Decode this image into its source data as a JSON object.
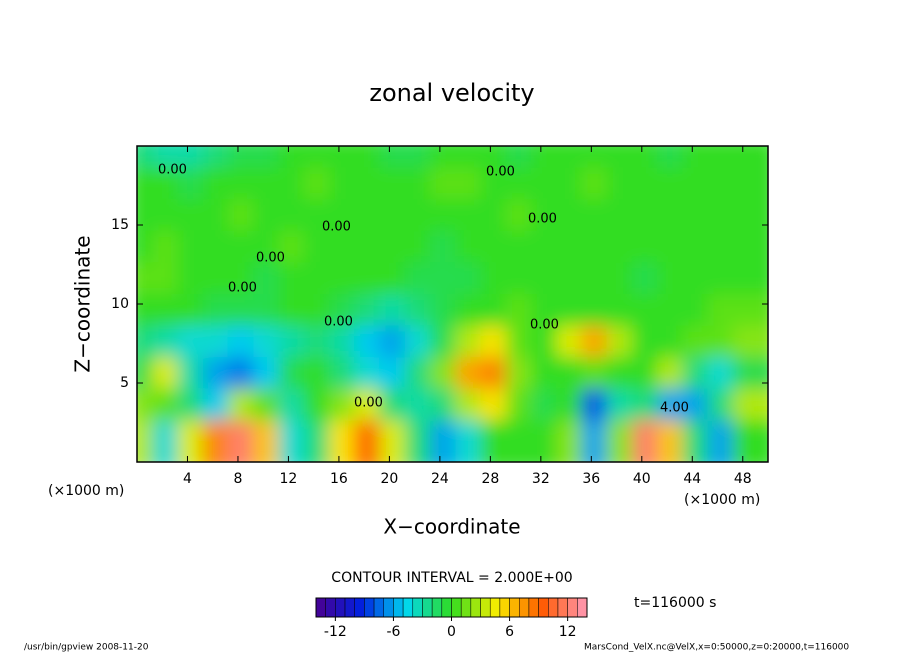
{
  "chart_data": {
    "type": "contour",
    "title": "zonal velocity",
    "x_label": "X−coordinate",
    "y_label": "Z−coordinate",
    "x_unit": "(×1000 m)",
    "xlim": [
      0,
      50
    ],
    "ylim": [
      0,
      20
    ],
    "xticks": [
      4,
      8,
      12,
      16,
      20,
      24,
      28,
      32,
      36,
      40,
      44,
      48
    ],
    "yticks": [
      5,
      10,
      15
    ],
    "x": [
      1,
      3,
      5,
      7,
      9,
      11,
      13,
      15,
      17,
      19,
      21,
      23,
      25,
      27,
      29,
      31,
      33,
      35,
      37,
      39,
      41,
      43,
      45,
      47,
      49
    ],
    "y": [
      19,
      17,
      15,
      13,
      11,
      9,
      7,
      5,
      3,
      1
    ],
    "z": [
      [
        -2,
        -3,
        -3,
        -2,
        -1,
        -1,
        0,
        0,
        0,
        0,
        -1,
        -1,
        0,
        0,
        0,
        -1,
        0,
        0,
        0,
        0,
        0,
        -1,
        0,
        0,
        0
      ],
      [
        0,
        0,
        -1,
        0,
        0,
        0,
        0,
        1,
        0,
        0,
        0,
        0,
        1,
        1,
        0,
        0,
        0,
        0,
        1,
        0,
        0,
        0,
        0,
        0,
        0
      ],
      [
        0,
        0,
        0,
        0,
        1,
        0,
        0,
        0,
        0,
        0,
        0,
        0,
        0,
        0,
        0,
        1,
        0,
        0,
        0,
        0,
        0,
        0,
        0,
        0,
        0
      ],
      [
        0,
        1,
        0,
        0,
        0,
        0,
        1,
        0,
        0,
        0,
        0,
        0,
        -1,
        0,
        0,
        0,
        0,
        0,
        0,
        0,
        0,
        0,
        0,
        0,
        0
      ],
      [
        1,
        1,
        0,
        0,
        0,
        -1,
        0,
        0,
        0,
        0,
        0,
        -1,
        -1,
        -1,
        0,
        0,
        0,
        0,
        0,
        0,
        -1,
        0,
        0,
        0,
        0
      ],
      [
        0,
        0,
        0,
        -1,
        -1,
        -1,
        0,
        0,
        -1,
        -2,
        -3,
        -2,
        -1,
        0,
        0,
        1,
        0,
        0,
        0,
        0,
        0,
        0,
        0,
        1,
        1
      ],
      [
        -2,
        -3,
        -4,
        -4,
        -5,
        -4,
        -3,
        -2,
        -3,
        -5,
        -6,
        -4,
        -1,
        3,
        5,
        1,
        0,
        4,
        7,
        3,
        0,
        0,
        1,
        1,
        2
      ],
      [
        -1,
        4,
        -3,
        -6,
        -7,
        -5,
        -1,
        0,
        -2,
        -4,
        -5,
        -2,
        2,
        7,
        8,
        2,
        0,
        0,
        1,
        0,
        0,
        3,
        -2,
        -4,
        -1
      ],
      [
        2,
        1,
        -2,
        -5,
        3,
        1,
        -3,
        0,
        2,
        4,
        -2,
        -3,
        -2,
        3,
        5,
        1,
        -1,
        0,
        -8,
        -3,
        -2,
        -6,
        -6,
        -2,
        3
      ],
      [
        3,
        -4,
        4,
        8,
        12,
        6,
        -4,
        -2,
        5,
        9,
        4,
        -2,
        -6,
        -4,
        0,
        0,
        0,
        2,
        -6,
        2,
        12,
        6,
        -2,
        -6,
        0
      ]
    ],
    "clim": [
      -14,
      14
    ],
    "cticks": [
      -12,
      -6,
      0,
      6,
      12
    ],
    "colormap": [
      "#4a0090",
      "#0020e0",
      "#00d8f0",
      "#30dd20",
      "#f8ee00",
      "#ff5a00",
      "#ff9ab8"
    ],
    "contour_labels": [
      "0.00",
      "0.00",
      "0.00",
      "0.00",
      "0.00",
      "0.00",
      "0.00",
      "0.00",
      "0.00",
      "4.00"
    ],
    "contour_interval": "CONTOUR INTERVAL = 2.000E+00",
    "time_label": "t=116000 s",
    "footer_left": "/usr/bin/gpview   2008-11-20",
    "footer_right": "MarsCond_VelX.nc@VelX,x=0:50000,z=0:20000,t=116000"
  }
}
